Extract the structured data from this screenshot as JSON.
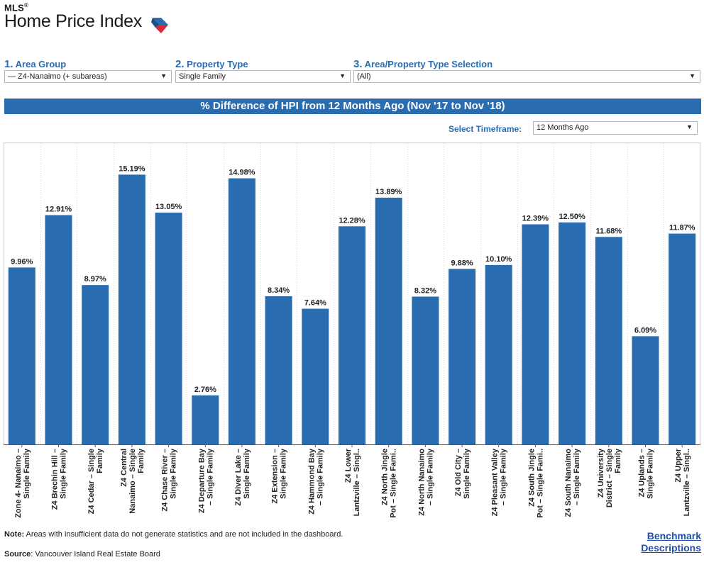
{
  "logo": {
    "mls": "MLS",
    "reg": "®",
    "title": "Home Price Index"
  },
  "controls": {
    "area_group": {
      "num": "1.",
      "label": "Area Group",
      "value": "— Z4-Nanaimo (+ subareas)"
    },
    "property_type": {
      "num": "2.",
      "label": "Property Type",
      "value": "Single Family"
    },
    "selection": {
      "num": "3.",
      "label": "Area/Property Type Selection",
      "value": "(All)"
    }
  },
  "timeframe": {
    "label": "Select Timeframe:",
    "value": "12 Months Ago"
  },
  "colors": {
    "bar": "#2a6cb0",
    "accent_blue": "#2a6cb0",
    "accent_red": "#d9283a"
  },
  "chart_data": {
    "type": "bar",
    "title": "% Difference of HPI from 12 Months Ago (Nov '17 to Nov '18)",
    "ylim": [
      0,
      17
    ],
    "grid": true,
    "categories": [
      [
        "Zone 4- Nanaimo –",
        "Single Family"
      ],
      [
        "Z4 Brechin Hill –",
        "Single Family"
      ],
      [
        "Z4 Cedar – Single",
        "Family"
      ],
      [
        "Z4 Central",
        "Nanaimo – Single",
        "Family"
      ],
      [
        "Z4 Chase River –",
        "Single Family"
      ],
      [
        "Z4 Departure Bay",
        "– Single Family"
      ],
      [
        "Z4 Diver Lake –",
        "Single Family"
      ],
      [
        "Z4 Extension –",
        "Single Family"
      ],
      [
        "Z4 Hammond Bay",
        "– Single Family"
      ],
      [
        "Z4 Lower",
        "Lantzville – Singl.."
      ],
      [
        "Z4 North Jingle",
        "Pot – Single Fami.."
      ],
      [
        "Z4 North Nanaimo",
        "– Single Family"
      ],
      [
        "Z4 Old City –",
        "Single Family"
      ],
      [
        "Z4 Pleasant Valley",
        "– Single Family"
      ],
      [
        "Z4 South Jingle",
        "Pot – Single Fami.."
      ],
      [
        "Z4 South Nanaimo",
        "– Single Family"
      ],
      [
        "Z4 University",
        "District – Single",
        "Family"
      ],
      [
        "Z4 Uplands –",
        "Single Family"
      ],
      [
        "Z4 Upper",
        "Lantzville – Singl.."
      ]
    ],
    "values": [
      9.96,
      12.91,
      8.97,
      15.19,
      13.05,
      2.76,
      14.98,
      8.34,
      7.64,
      12.28,
      13.89,
      8.32,
      9.88,
      10.1,
      12.39,
      12.5,
      11.68,
      6.09,
      11.87
    ],
    "labels": [
      "9.96%",
      "12.91%",
      "8.97%",
      "15.19%",
      "13.05%",
      "2.76%",
      "14.98%",
      "8.34%",
      "7.64%",
      "12.28%",
      "13.89%",
      "8.32%",
      "9.88%",
      "10.10%",
      "12.39%",
      "12.50%",
      "11.68%",
      "6.09%",
      "11.87%"
    ]
  },
  "footer": {
    "note_bold": "Note:",
    "note_text": " Areas with insufficient data do not generate statistics and are not included in the dashboard.",
    "source_bold": "Source",
    "source_text": ": Vancouver Island Real Estate Board",
    "benchmark_line1": "Benchmark",
    "benchmark_line2": "Descriptions"
  }
}
